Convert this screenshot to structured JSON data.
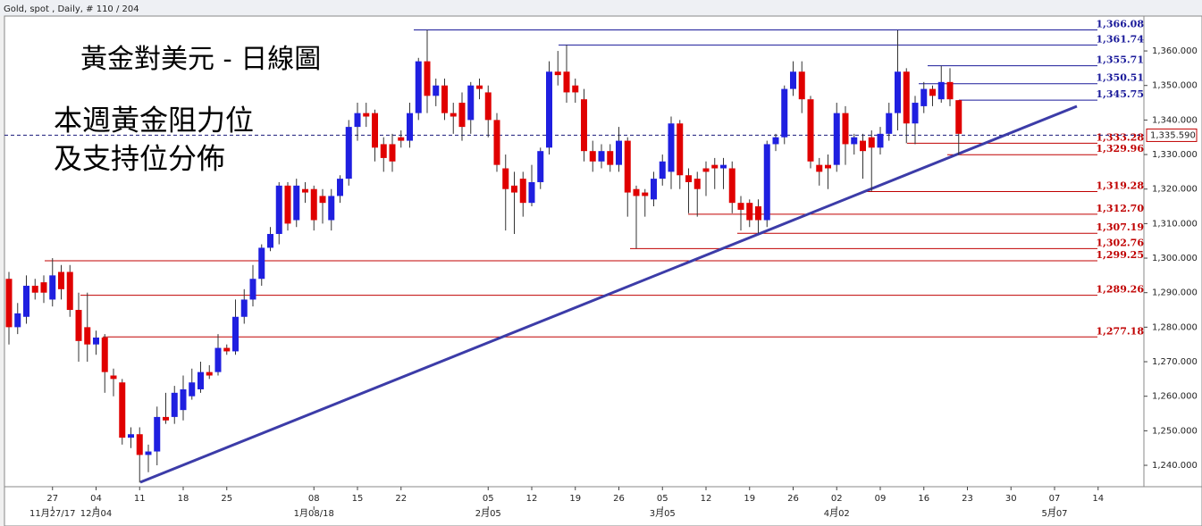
{
  "chart_data": {
    "type": "candlestick",
    "header": "Gold, spot , Daily, # 110 / 204",
    "title": "黃金對美元 - 日線圖",
    "annotation": [
      "本週黃金阻力位",
      "及支持位分佈"
    ],
    "up_color": "#1f1fe0",
    "down_color": "#e00000",
    "open": [
      1294,
      1280,
      1283,
      1292,
      1293,
      1288,
      1296,
      1296,
      1285,
      1280,
      1275,
      1277,
      1266,
      1264,
      1248,
      1249,
      1243,
      1244,
      1254,
      1254,
      1256,
      1260,
      1262,
      1267,
      1267,
      1274,
      1273,
      1283,
      1288,
      1294,
      1303,
      1307,
      1321,
      1311,
      1320,
      1320,
      1318,
      1311,
      1318,
      1323,
      1338,
      1342,
      1342,
      1333,
      1333,
      1335,
      1334,
      1342,
      1357,
      1347,
      1350,
      1342,
      1345,
      1340,
      1350,
      1348,
      1340,
      1326,
      1321,
      1323,
      1316,
      1322,
      1332,
      1354,
      1354,
      1350,
      1346,
      1331,
      1328,
      1331,
      1327,
      1334,
      1320,
      1319,
      1317,
      1323,
      1325,
      1339,
      1324,
      1323,
      1326,
      1327,
      1326,
      1326,
      1316,
      1316,
      1315,
      1311,
      1333,
      1335,
      1349,
      1354,
      1346,
      1327,
      1327,
      1327,
      1342,
      1333,
      1334,
      1335,
      1332,
      1336,
      1342,
      1354,
      1339,
      1344,
      1349,
      1346,
      1351,
      1345.75
    ],
    "high": [
      1296,
      1287,
      1295,
      1294,
      1295,
      1300,
      1298,
      1298,
      1290,
      1290,
      1279,
      1278,
      1268,
      1265,
      1251,
      1251,
      1246,
      1257,
      1261,
      1263,
      1266,
      1268,
      1270,
      1269,
      1278,
      1275,
      1288,
      1291,
      1298,
      1304,
      1309,
      1322,
      1322,
      1323,
      1322,
      1321,
      1320,
      1320,
      1324,
      1340,
      1345,
      1345,
      1343,
      1335,
      1336,
      1337,
      1345,
      1358,
      1366.08,
      1352,
      1352,
      1345,
      1348,
      1351,
      1352,
      1350,
      1342,
      1330,
      1325,
      1325,
      1327,
      1332,
      1357,
      1360,
      1361.74,
      1352,
      1349,
      1334,
      1333,
      1333,
      1338,
      1335,
      1321,
      1320,
      1325,
      1330,
      1341,
      1340,
      1326,
      1325,
      1328,
      1329,
      1329,
      1328,
      1318,
      1317,
      1317,
      1334,
      1336,
      1350,
      1357,
      1357,
      1347,
      1329,
      1330,
      1345,
      1344,
      1336,
      1336,
      1337,
      1338,
      1345,
      1366,
      1355,
      1347,
      1351,
      1350,
      1355.71,
      1355,
      1345.75
    ],
    "low": [
      1275,
      1278,
      1281,
      1288,
      1287,
      1286,
      1288,
      1283,
      1270,
      1270,
      1272,
      1261,
      1260,
      1246,
      1245,
      1235,
      1238,
      1240,
      1252,
      1252,
      1253,
      1259,
      1261,
      1265,
      1266,
      1272,
      1272,
      1281,
      1286,
      1292,
      1302,
      1304,
      1308,
      1309,
      1316,
      1308,
      1310,
      1308,
      1316,
      1321,
      1334,
      1338,
      1328,
      1325,
      1325,
      1332,
      1332,
      1340,
      1342,
      1344,
      1340,
      1336,
      1334,
      1336,
      1346,
      1335,
      1325,
      1308,
      1307,
      1312,
      1315,
      1320,
      1330,
      1350,
      1345,
      1345,
      1328,
      1325,
      1326,
      1325,
      1325,
      1312,
      1302.76,
      1312,
      1315,
      1321,
      1320,
      1320,
      1313,
      1312,
      1318,
      1320,
      1320,
      1313,
      1308,
      1309,
      1307.19,
      1309,
      1331,
      1333,
      1347,
      1342,
      1326,
      1321,
      1320,
      1325,
      1327,
      1330,
      1323,
      1319.28,
      1330,
      1334,
      1337,
      1333.28,
      1333,
      1342,
      1344,
      1345,
      1344,
      1329.96
    ],
    "close": [
      1280,
      1284,
      1292,
      1290,
      1290,
      1295,
      1291,
      1285,
      1276,
      1275,
      1277,
      1267,
      1265,
      1248,
      1249,
      1243,
      1244,
      1254,
      1253,
      1261,
      1262,
      1264,
      1267,
      1266,
      1274,
      1273,
      1283,
      1288,
      1294,
      1303,
      1307,
      1321,
      1310,
      1321,
      1319,
      1311,
      1316,
      1318,
      1323,
      1338,
      1342,
      1341,
      1332,
      1329,
      1328,
      1334,
      1342,
      1357,
      1347,
      1350,
      1342,
      1341,
      1338,
      1350,
      1349,
      1340,
      1327,
      1320,
      1319,
      1316,
      1322,
      1331,
      1354,
      1353,
      1348,
      1348,
      1331,
      1328,
      1331,
      1327,
      1334,
      1319,
      1318,
      1318,
      1323,
      1328,
      1339,
      1324,
      1322,
      1320,
      1325,
      1326,
      1327,
      1316,
      1314,
      1311,
      1311,
      1333,
      1335,
      1349,
      1354,
      1346,
      1328,
      1325,
      1326,
      1342,
      1333,
      1335,
      1331,
      1332,
      1336,
      1342,
      1354,
      1339,
      1345,
      1349,
      1347,
      1351,
      1346,
      1336
    ],
    "ylim": [
      1233.8,
      1370.1
    ],
    "yticks": [
      {
        "value": 1240,
        "label": "1,240.000"
      },
      {
        "value": 1250,
        "label": "1,250.000"
      },
      {
        "value": 1260,
        "label": "1,260.000"
      },
      {
        "value": 1270,
        "label": "1,270.000"
      },
      {
        "value": 1280,
        "label": "1,280.000"
      },
      {
        "value": 1290,
        "label": "1,290.000"
      },
      {
        "value": 1300,
        "label": "1,300.000"
      },
      {
        "value": 1310,
        "label": "1,310.000"
      },
      {
        "value": 1320,
        "label": "1,320.000"
      },
      {
        "value": 1330,
        "label": "1,330.000"
      },
      {
        "value": 1340,
        "label": "1,340.000"
      },
      {
        "value": 1350,
        "label": "1,350.000"
      },
      {
        "value": 1360,
        "label": "1,360.000"
      }
    ],
    "xticks": [
      {
        "value": 5,
        "label": "27"
      },
      {
        "value": 10,
        "label": "04"
      },
      {
        "value": 15,
        "label": "11"
      },
      {
        "value": 20,
        "label": "18"
      },
      {
        "value": 25,
        "label": "25"
      },
      {
        "value": 35,
        "label": "08"
      },
      {
        "value": 40,
        "label": "15"
      },
      {
        "value": 45,
        "label": "22"
      },
      {
        "value": 55,
        "label": "05"
      },
      {
        "value": 60,
        "label": "12"
      },
      {
        "value": 65,
        "label": "19"
      },
      {
        "value": 70,
        "label": "26"
      },
      {
        "value": 75,
        "label": "05"
      },
      {
        "value": 80,
        "label": "12"
      },
      {
        "value": 85,
        "label": "19"
      },
      {
        "value": 90,
        "label": "26"
      },
      {
        "value": 95,
        "label": "02"
      },
      {
        "value": 100,
        "label": "09"
      },
      {
        "value": 105,
        "label": "16"
      },
      {
        "value": 110,
        "label": "23"
      },
      {
        "value": 115,
        "label": "30"
      },
      {
        "value": 120,
        "label": "07"
      },
      {
        "value": 125,
        "label": "14"
      }
    ],
    "xticks_secondary": [
      {
        "value": 5,
        "label": "11月27/17"
      },
      {
        "value": 10,
        "label": "12月04"
      },
      {
        "value": 35,
        "label": "1月08/18"
      },
      {
        "value": 55,
        "label": "2月05"
      },
      {
        "value": 75,
        "label": "3月05"
      },
      {
        "value": 95,
        "label": "4月02"
      },
      {
        "value": 120,
        "label": "5月07"
      }
    ],
    "levels": [
      {
        "value": 1366.08,
        "label": "1,366.08",
        "color": "#1a1a9a"
      },
      {
        "value": 1361.74,
        "label": "1,361.74",
        "color": "#1a1a9a"
      },
      {
        "value": 1355.71,
        "label": "1,355.71",
        "color": "#1a1a9a"
      },
      {
        "value": 1350.51,
        "label": "1,350.51",
        "color": "#1a1a9a"
      },
      {
        "value": 1345.75,
        "label": "1,345.75",
        "color": "#1a1a9a"
      },
      {
        "value": 1333.28,
        "label": "1,333.28",
        "color": "#c00000"
      },
      {
        "value": 1329.96,
        "label": "1,329.96",
        "color": "#c00000"
      },
      {
        "value": 1319.28,
        "label": "1,319.28",
        "color": "#c00000"
      },
      {
        "value": 1312.7,
        "label": "1,312.70",
        "color": "#c00000"
      },
      {
        "value": 1307.19,
        "label": "1,307.19",
        "color": "#c00000"
      },
      {
        "value": 1302.76,
        "label": "1,302.76",
        "color": "#c00000"
      },
      {
        "value": 1299.25,
        "label": "1,299.25",
        "color": "#c00000"
      },
      {
        "value": 1289.26,
        "label": "1,289.26",
        "color": "#c00000"
      },
      {
        "value": 1277.18,
        "label": "1,277.18",
        "color": "#c00000"
      }
    ],
    "current_price": {
      "value": 1335.59,
      "label": "1,335.590"
    }
  }
}
